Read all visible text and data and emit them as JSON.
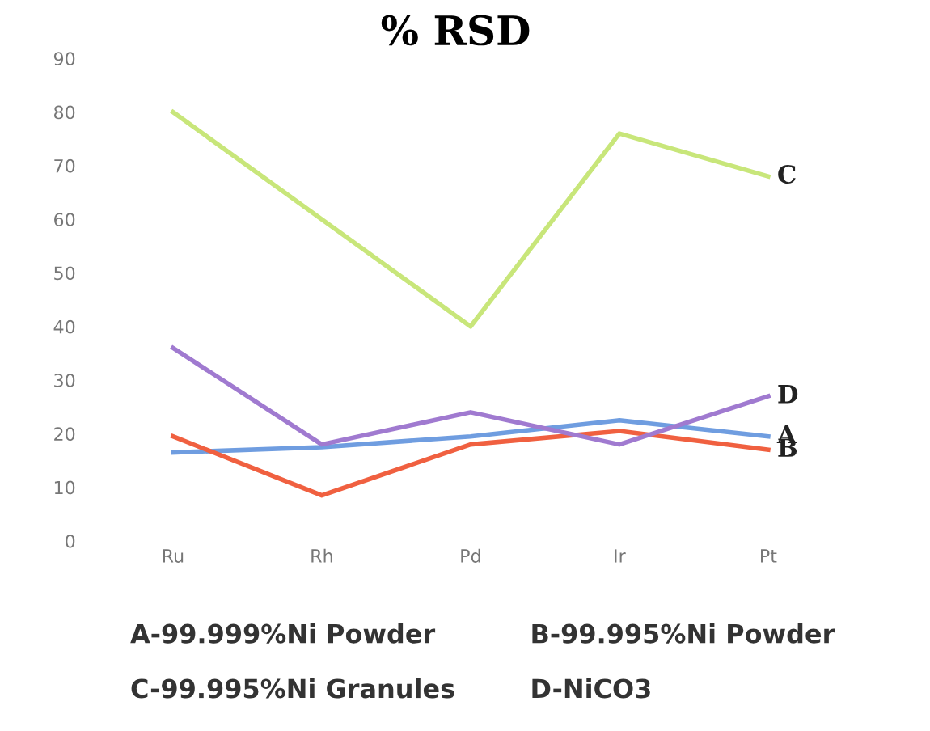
{
  "chart_data": {
    "type": "line",
    "title": "% RSD",
    "categories": [
      "Ru",
      "Rh",
      "Pd",
      "Ir",
      "Pt"
    ],
    "series": [
      {
        "name": "A",
        "color": "#6f9de0",
        "values": [
          16.5,
          17.5,
          19.5,
          22.5,
          19.5
        ]
      },
      {
        "name": "B",
        "color": "#f06040",
        "values": [
          19.5,
          8.5,
          18,
          20.5,
          17
        ]
      },
      {
        "name": "C",
        "color": "#c8e67a",
        "values": [
          80,
          60,
          40,
          76,
          68
        ]
      },
      {
        "name": "D",
        "color": "#a07ad0",
        "values": [
          36,
          18,
          24,
          18,
          27
        ]
      }
    ],
    "ylim": [
      0,
      90
    ],
    "yticks": [
      0,
      10,
      20,
      30,
      40,
      50,
      60,
      70,
      80,
      90
    ],
    "grid": false,
    "legend": false,
    "marker": "none",
    "line_style": "solid",
    "annotations": [
      "A-99.999%Ni Powder",
      "B-99.995%Ni Powder",
      "C-99.995%Ni Granules",
      "D-NiCO3"
    ]
  }
}
